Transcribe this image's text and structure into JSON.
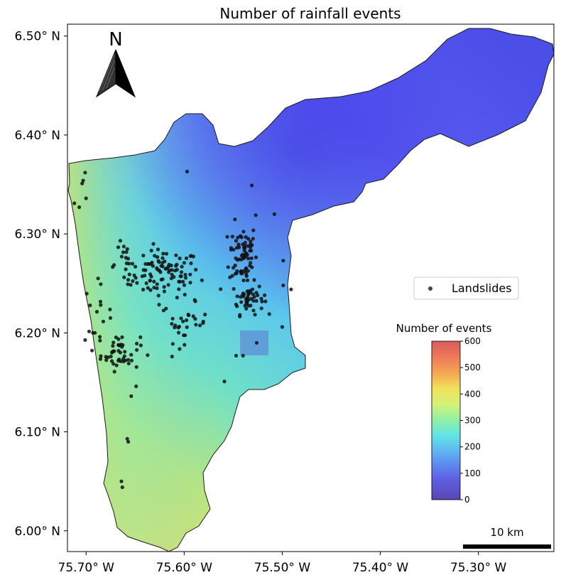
{
  "chart_data": {
    "type": "map",
    "title": "Number of rainfall events",
    "x_ticks": [
      {
        "value": -75.7,
        "label": "75.70° W"
      },
      {
        "value": -75.6,
        "label": "75.60° W"
      },
      {
        "value": -75.5,
        "label": "75.50° W"
      },
      {
        "value": -75.4,
        "label": "75.40° W"
      },
      {
        "value": -75.3,
        "label": "75.30° W"
      }
    ],
    "y_ticks": [
      {
        "value": 6.0,
        "label": "6.00° N"
      },
      {
        "value": 6.1,
        "label": "6.10° N"
      },
      {
        "value": 6.2,
        "label": "6.20° N"
      },
      {
        "value": 6.3,
        "label": "6.30° N"
      },
      {
        "value": 6.4,
        "label": "6.40° N"
      },
      {
        "value": 6.5,
        "label": "6.50° N"
      }
    ],
    "xlim": [
      -75.719,
      -75.223
    ],
    "ylim": [
      5.979,
      6.512
    ],
    "north_arrow": "N",
    "legend": {
      "label": "Landslides",
      "placement": "right"
    },
    "colorbar": {
      "title": "Number of events",
      "ticks": [
        0,
        100,
        200,
        300,
        400,
        500,
        600
      ],
      "range": [
        0,
        600
      ]
    },
    "scale_bar": {
      "label": "10 km"
    },
    "colors": {
      "low": "#3b2bd9",
      "mid": "#49d2e8",
      "high": "#f0e04a",
      "landslide": "#111111"
    },
    "landslide_clusters": [
      {
        "lon": -75.62,
        "lat": 6.26,
        "count": 95,
        "spread_lon": 0.018,
        "spread_lat": 0.012
      },
      {
        "lon": -75.54,
        "lat": 6.28,
        "count": 70,
        "spread_lon": 0.007,
        "spread_lat": 0.016
      },
      {
        "lon": -75.535,
        "lat": 6.235,
        "count": 50,
        "spread_lon": 0.008,
        "spread_lat": 0.008
      },
      {
        "lon": -75.665,
        "lat": 6.18,
        "count": 45,
        "spread_lon": 0.01,
        "spread_lat": 0.009
      },
      {
        "lon": -75.6,
        "lat": 6.21,
        "count": 30,
        "spread_lon": 0.012,
        "spread_lat": 0.01
      },
      {
        "lon": -75.66,
        "lat": 6.27,
        "count": 18,
        "spread_lon": 0.008,
        "spread_lat": 0.012
      },
      {
        "lon": -75.69,
        "lat": 6.22,
        "count": 14,
        "spread_lon": 0.008,
        "spread_lat": 0.015
      }
    ],
    "landslide_points": [
      [
        -75.701,
        6.362
      ],
      [
        -75.703,
        6.354
      ],
      [
        -75.704,
        6.351
      ],
      [
        -75.707,
        6.327
      ],
      [
        -75.7,
        6.336
      ],
      [
        -75.712,
        6.331
      ],
      [
        -75.597,
        6.363
      ],
      [
        -75.531,
        6.349
      ],
      [
        -75.527,
        6.319
      ],
      [
        -75.508,
        6.32
      ],
      [
        -75.649,
        6.146
      ],
      [
        -75.654,
        6.136
      ],
      [
        -75.658,
        6.093
      ],
      [
        -75.657,
        6.09
      ],
      [
        -75.664,
        6.05
      ],
      [
        -75.663,
        6.044
      ],
      [
        -75.499,
        6.273
      ],
      [
        -75.499,
        6.248
      ],
      [
        -75.5,
        6.206
      ],
      [
        -75.491,
        6.244
      ],
      [
        -75.518,
        6.238
      ],
      [
        -75.526,
        6.19
      ],
      [
        -75.54,
        6.177
      ],
      [
        -75.559,
        6.151
      ],
      [
        -75.547,
        6.177
      ],
      [
        -75.691,
        6.2
      ],
      [
        -75.693,
        6.2
      ],
      [
        -75.686,
        6.196
      ]
    ]
  }
}
